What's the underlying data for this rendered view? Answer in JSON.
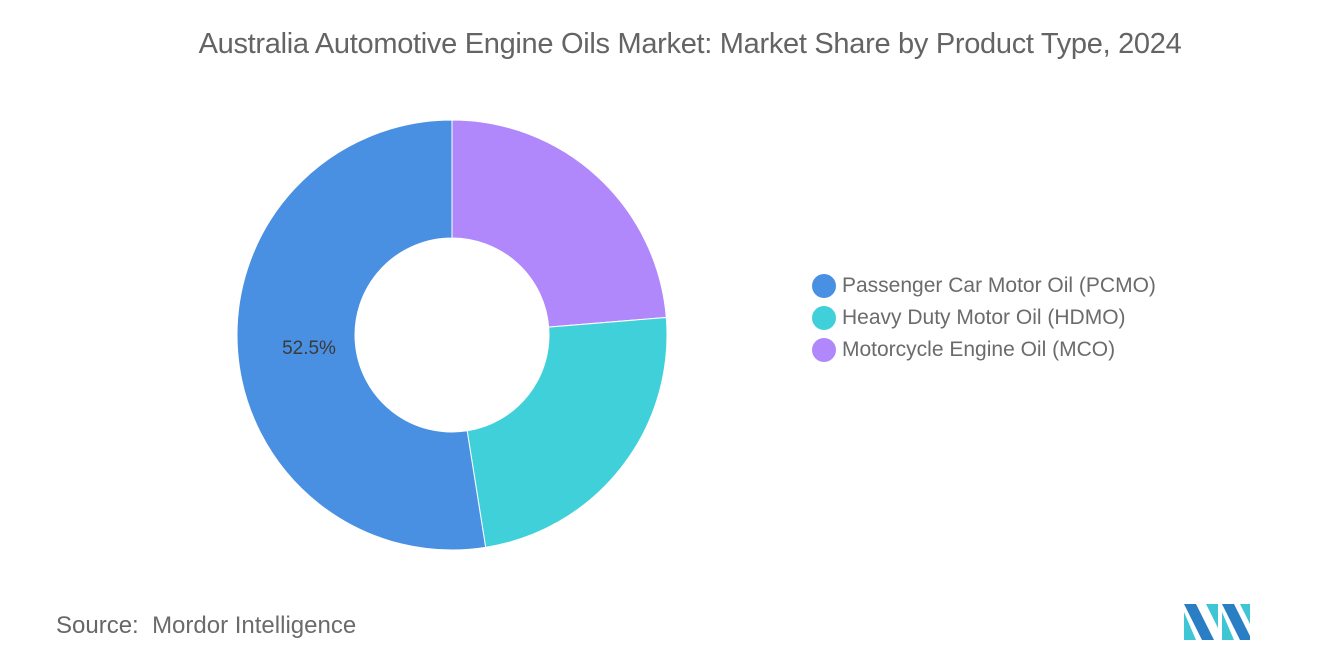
{
  "title": "Australia Automotive Engine Oils Market: Market Share by Product Type, 2024",
  "source": {
    "label": "Source:",
    "value": "Mordor Intelligence"
  },
  "logo": {
    "icon": "mordor-intelligence-logo-icon"
  },
  "chart_data": {
    "type": "pie",
    "subtype": "donut",
    "title": "Australia Automotive Engine Oils Market: Market Share by Product Type, 2024",
    "categories": [
      "Passenger Car Motor Oil (PCMO)",
      "Heavy Duty Motor Oil (HDMO)",
      "Motorcycle Engine Oil (MCO)"
    ],
    "values": [
      52.5,
      23.8,
      23.7
    ],
    "colors": [
      "#4a90e2",
      "#40d0da",
      "#b088fb"
    ],
    "data_labels": [
      "52.5%",
      "",
      ""
    ],
    "legend_position": "right",
    "start_angle_deg": 0,
    "direction": "clockwise",
    "slice_order": [
      "Motorcycle Engine Oil (MCO)",
      "Heavy Duty Motor Oil (HDMO)",
      "Passenger Car Motor Oil (PCMO)"
    ]
  },
  "legend": {
    "items": [
      {
        "label": "Passenger Car Motor Oil (PCMO)",
        "color": "#4a90e2"
      },
      {
        "label": "Heavy Duty Motor Oil (HDMO)",
        "color": "#40d0da"
      },
      {
        "label": "Motorcycle Engine Oil (MCO)",
        "color": "#b088fb"
      }
    ]
  },
  "label_pcmo": "52.5%"
}
